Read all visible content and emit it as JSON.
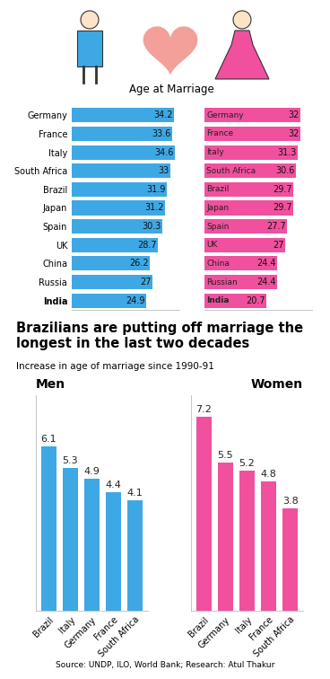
{
  "header": "Age at Marriage",
  "headline": "Brazilians are putting off marriage the longest in the last two decades",
  "subtitle": "Increase in age of marriage since 1990-91",
  "source": "Source: UNDP, ILO, World Bank; Research: Atul Thakur",
  "chart_data": [
    {
      "type": "bar",
      "orientation": "horizontal",
      "categories": [
        "Germany",
        "France",
        "Italy",
        "South Africa",
        "Brazil",
        "Japan",
        "Spain",
        "UK",
        "China",
        "Russia",
        "India"
      ],
      "values": [
        34.2,
        33.6,
        34.6,
        33,
        31.9,
        31.2,
        30.3,
        28.7,
        26.2,
        27,
        24.9
      ],
      "color": "#3ea8e5",
      "xlim": [
        0,
        36
      ],
      "data_labels": true,
      "tick_labels": "y"
    },
    {
      "type": "bar",
      "orientation": "horizontal",
      "categories": [
        "Germany",
        "France",
        "Italy",
        "South Africa",
        "Brazil",
        "Japan",
        "Spain",
        "UK",
        "China",
        "Russian",
        "India"
      ],
      "values": [
        32,
        32,
        31.3,
        30.6,
        29.7,
        29.7,
        27.7,
        27,
        24.4,
        24.4,
        20.7
      ],
      "color": "#f0509e",
      "xlim": [
        0,
        36
      ],
      "data_labels": true,
      "tick_labels": false
    },
    {
      "type": "bar",
      "title": "Men",
      "categories": [
        "Brazil",
        "Italy",
        "Germany",
        "France",
        "South Africa"
      ],
      "values": [
        6.1,
        5.3,
        4.9,
        4.4,
        4.1
      ],
      "color": "#3ea8e5",
      "ylim": [
        0,
        8
      ],
      "data_labels": true,
      "tick_labels": "x"
    },
    {
      "type": "bar",
      "title": "Women",
      "categories": [
        "Brazil",
        "Germany",
        "Italy",
        "France",
        "South Africa"
      ],
      "values": [
        7.2,
        5.5,
        5.2,
        4.8,
        3.8
      ],
      "color": "#f0509e",
      "ylim": [
        0,
        8
      ],
      "data_labels": true,
      "tick_labels": "x"
    }
  ]
}
